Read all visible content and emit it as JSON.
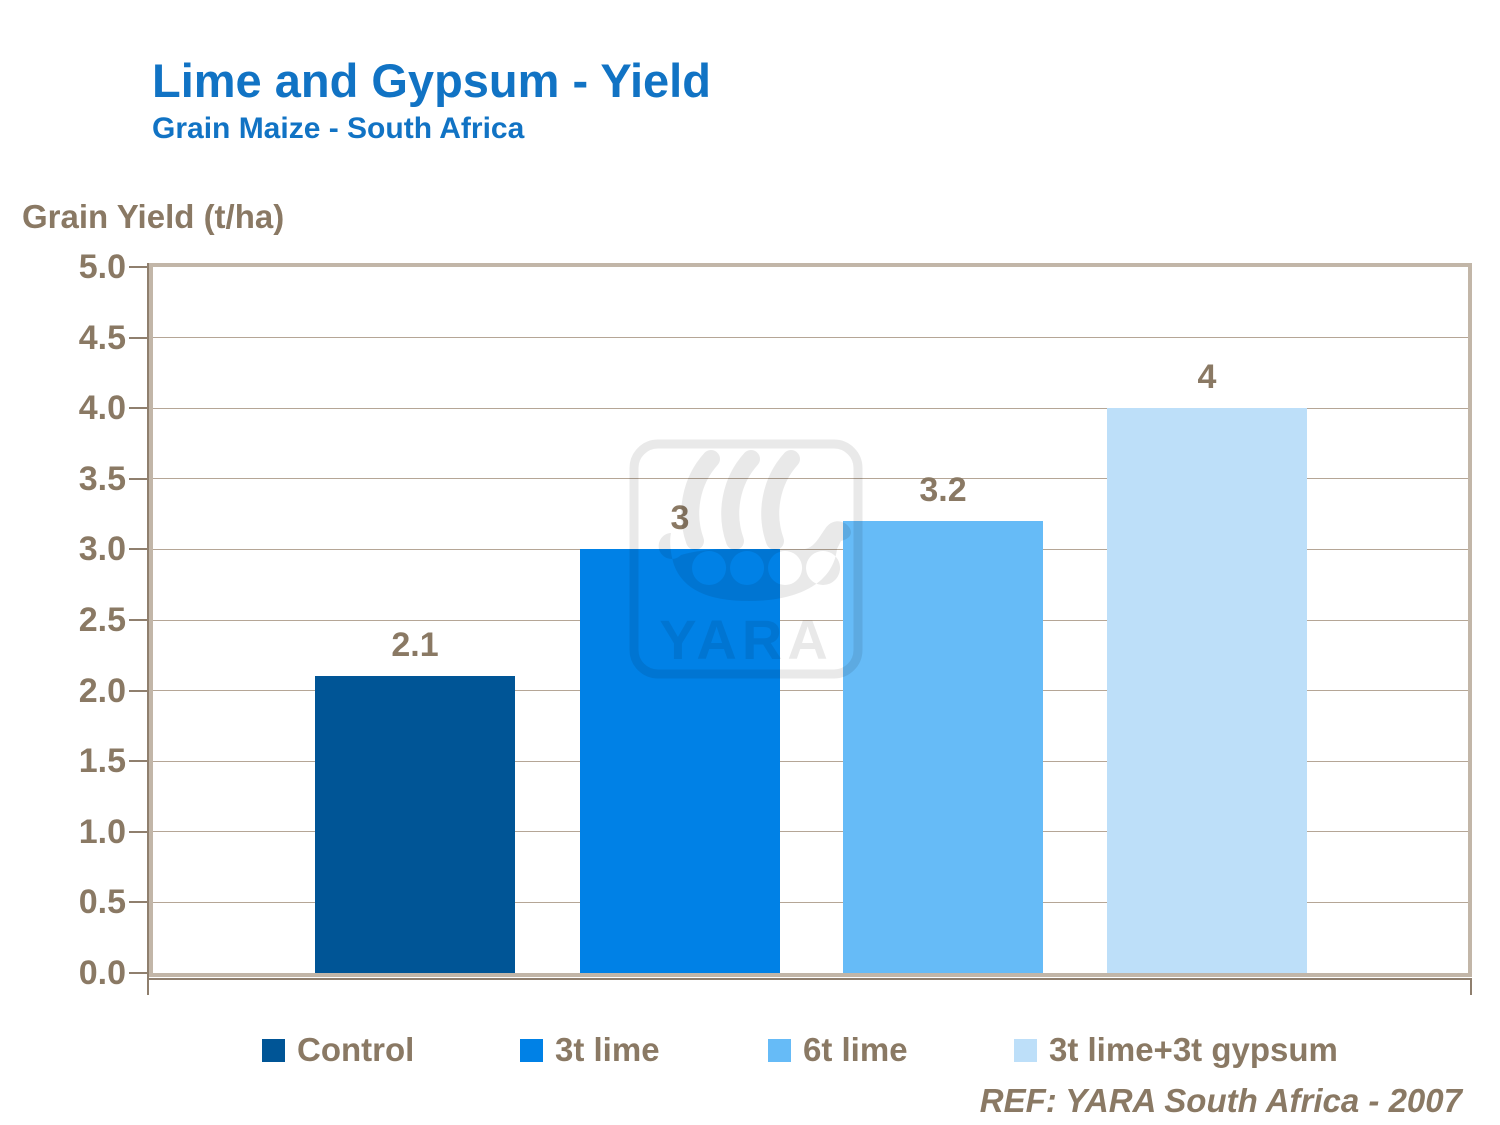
{
  "header": {
    "title": "Lime and Gypsum - Yield",
    "subtitle": "Grain Maize - South Africa"
  },
  "footer": {
    "ref": "REF: YARA South Africa - 2007"
  },
  "colors": {
    "title_blue": "#1173C4",
    "text_brown": "#8A7964",
    "gridline": "#B5A696",
    "plot_border": "#C2B6A8",
    "axis_dark": "#8F7F6E",
    "watermark": "rgba(0,0,0,0.085)"
  },
  "chart_data": {
    "type": "bar",
    "title": "Lime and Gypsum - Yield",
    "subtitle": "Grain Maize - South Africa",
    "xlabel": "",
    "ylabel": "Grain Yield (t/ha)",
    "ylim": [
      0,
      5
    ],
    "ytick_step": 0.5,
    "grid": true,
    "legend_position": "bottom",
    "categories": [
      "Control",
      "3t lime",
      "6t lime",
      "3t lime+3t gypsum"
    ],
    "series": [
      {
        "name": "Control",
        "value": 2.1,
        "label": "2.1",
        "color": "#005596"
      },
      {
        "name": "3t lime",
        "value": 3,
        "label": "3",
        "color": "#0081E6"
      },
      {
        "name": "6t lime",
        "value": 3.2,
        "label": "3.2",
        "color": "#66BBF7"
      },
      {
        "name": "3t lime+3t gypsum",
        "value": 4,
        "label": "4",
        "color": "#BDDFF9"
      }
    ],
    "watermark_text": "YARA"
  }
}
